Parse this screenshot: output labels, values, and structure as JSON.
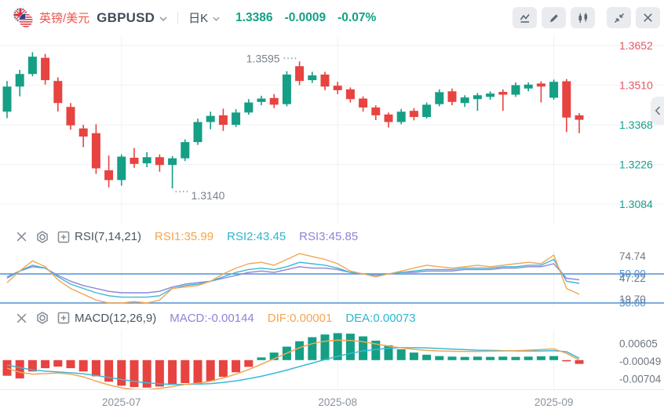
{
  "header": {
    "symbol_cn": "英镑/美元",
    "symbol_code": "GBPUSD",
    "period": "日K",
    "price": "1.3386",
    "change": "-0.0009",
    "change_pct": "-0.07%",
    "toolbar_icons": [
      "line-chart",
      "draw-pencil",
      "candlestick-type",
      "collapse",
      "close"
    ]
  },
  "rsi": {
    "title": "RSI(7,14,21)",
    "series_labels": [
      {
        "text": "RSI1:35.99",
        "color": "#f5a54f"
      },
      {
        "text": "RSI2:43.45",
        "color": "#2eb6d0"
      },
      {
        "text": "RSI3:45.85",
        "color": "#8f84d6"
      }
    ]
  },
  "macd": {
    "title": "MACD(12,26,9)",
    "series_labels": [
      {
        "text": "MACD:-0.00144",
        "color": "#8f84d6"
      },
      {
        "text": "DIF:0.00001",
        "color": "#f5a54f"
      },
      {
        "text": "DEA:0.00073",
        "color": "#2eb6d0"
      }
    ]
  },
  "colors": {
    "up": "#159f85",
    "down": "#e74340",
    "axis_above": "#e25764",
    "axis_below": "#16a08c",
    "level_line": "#5291d6",
    "grid": "#f0f1f5",
    "tick_text": "#6f7680",
    "annotation": "#7b828c",
    "orange": "#f2a657",
    "cyan": "#3cb8d8",
    "purple": "#8f84d6"
  },
  "chart_data": [
    {
      "type": "candlestick",
      "title": "GBPUSD 日K",
      "y_ticks": [
        {
          "label": "1.3652",
          "color": "#e25764"
        },
        {
          "label": "1.3510",
          "color": "#e25764"
        },
        {
          "label": "1.3368",
          "color": "#16a08c"
        },
        {
          "label": "1.3226",
          "color": "#16a08c"
        },
        {
          "label": "1.3084",
          "color": "#16a08c"
        }
      ],
      "x_ticks": [
        {
          "label": "2025-07",
          "index": 9
        },
        {
          "label": "2025-08",
          "index": 26
        },
        {
          "label": "2025-09",
          "index": 43
        }
      ],
      "ohlc_order": [
        "open",
        "high",
        "low",
        "close"
      ],
      "candles": [
        [
          1.3415,
          1.3525,
          1.3392,
          1.3505
        ],
        [
          1.3505,
          1.3565,
          1.347,
          1.355
        ],
        [
          1.355,
          1.3628,
          1.3542,
          1.3612
        ],
        [
          1.3608,
          1.3622,
          1.3512,
          1.3528
        ],
        [
          1.3525,
          1.3538,
          1.3416,
          1.3446
        ],
        [
          1.3432,
          1.3446,
          1.335,
          1.3366
        ],
        [
          1.3355,
          1.3368,
          1.3288,
          1.3326
        ],
        [
          1.3338,
          1.337,
          1.3192,
          1.3212
        ],
        [
          1.3205,
          1.3258,
          1.3144,
          1.317
        ],
        [
          1.317,
          1.3262,
          1.315,
          1.3254
        ],
        [
          1.325,
          1.3285,
          1.3214,
          1.3228
        ],
        [
          1.323,
          1.327,
          1.3216,
          1.3252
        ],
        [
          1.3252,
          1.3262,
          1.32,
          1.3224
        ],
        [
          1.3224,
          1.3256,
          1.314,
          1.3248
        ],
        [
          1.3248,
          1.3316,
          1.3238,
          1.3306
        ],
        [
          1.3306,
          1.339,
          1.3296,
          1.3378
        ],
        [
          1.3378,
          1.3415,
          1.3352,
          1.34
        ],
        [
          1.3402,
          1.3426,
          1.3346,
          1.3368
        ],
        [
          1.3368,
          1.3424,
          1.336,
          1.3412
        ],
        [
          1.3412,
          1.346,
          1.3404,
          1.3448
        ],
        [
          1.345,
          1.3472,
          1.3438,
          1.3462
        ],
        [
          1.3464,
          1.3478,
          1.3428,
          1.344
        ],
        [
          1.3442,
          1.356,
          1.3434,
          1.3548
        ],
        [
          1.3578,
          1.3595,
          1.351,
          1.3525
        ],
        [
          1.3528,
          1.3558,
          1.3518,
          1.3545
        ],
        [
          1.3548,
          1.3558,
          1.3492,
          1.3505
        ],
        [
          1.3508,
          1.3522,
          1.3478,
          1.3492
        ],
        [
          1.3495,
          1.3502,
          1.3448,
          1.346
        ],
        [
          1.3462,
          1.347,
          1.3415,
          1.343
        ],
        [
          1.343,
          1.3438,
          1.3385,
          1.3402
        ],
        [
          1.3405,
          1.3412,
          1.3358,
          1.3378
        ],
        [
          1.3378,
          1.3425,
          1.337,
          1.3415
        ],
        [
          1.3418,
          1.3428,
          1.3384,
          1.3396
        ],
        [
          1.3396,
          1.3448,
          1.339,
          1.344
        ],
        [
          1.3442,
          1.3495,
          1.3434,
          1.3485
        ],
        [
          1.3488,
          1.3498,
          1.3438,
          1.345
        ],
        [
          1.3446,
          1.3474,
          1.3432,
          1.3466
        ],
        [
          1.346,
          1.3482,
          1.3418,
          1.3474
        ],
        [
          1.3468,
          1.3488,
          1.3458,
          1.348
        ],
        [
          1.3486,
          1.3495,
          1.3418,
          1.3476
        ],
        [
          1.3476,
          1.352,
          1.3468,
          1.351
        ],
        [
          1.3498,
          1.352,
          1.3488,
          1.3512
        ],
        [
          1.3516,
          1.3524,
          1.3448,
          1.3505
        ],
        [
          1.3465,
          1.353,
          1.3458,
          1.3522
        ],
        [
          1.3524,
          1.3532,
          1.3342,
          1.3394
        ],
        [
          1.3402,
          1.341,
          1.3338,
          1.3386
        ]
      ],
      "annotations": [
        {
          "type": "high",
          "index": 23,
          "text": "1.3595"
        },
        {
          "type": "low",
          "index": 13,
          "text": "1.3140"
        }
      ]
    },
    {
      "type": "line",
      "name": "RSI",
      "levels": [
        {
          "value": 50,
          "label": "50.00"
        },
        {
          "value": 30,
          "label": "30.00"
        }
      ],
      "ticks": [
        "74.74",
        "47.22",
        "19.70"
      ],
      "series": [
        {
          "name": "RSI3",
          "color": "#8f84d6",
          "values": [
            48,
            52,
            55,
            54,
            49,
            45,
            42,
            40,
            38,
            37,
            37,
            37,
            38,
            41,
            43,
            44,
            45,
            47,
            49,
            51,
            52,
            51,
            53,
            55,
            54,
            54,
            53,
            51,
            50,
            50,
            50,
            51,
            51,
            52,
            52,
            52,
            53,
            53,
            53,
            54,
            54,
            55,
            55,
            57,
            47,
            46
          ]
        },
        {
          "name": "RSI2",
          "color": "#3cb8d8",
          "values": [
            47,
            52,
            56,
            54,
            48,
            43,
            40,
            37,
            35,
            34,
            34,
            34,
            35,
            40,
            42,
            43,
            45,
            48,
            51,
            53,
            54,
            53,
            55,
            58,
            57,
            56,
            54,
            51,
            50,
            49,
            50,
            51,
            52,
            53,
            53,
            53,
            54,
            54,
            54,
            55,
            55,
            56,
            56,
            60,
            45,
            43.5
          ]
        },
        {
          "name": "RSI1",
          "color": "#f2a657",
          "values": [
            44,
            52,
            59,
            55,
            46,
            40,
            36,
            32,
            30,
            30,
            31,
            30,
            32,
            40,
            41,
            42,
            45,
            50,
            54,
            57,
            58,
            56,
            60,
            64,
            62,
            60,
            57,
            52,
            50,
            48,
            50,
            52,
            54,
            56,
            55,
            54,
            55,
            56,
            55,
            56,
            57,
            58,
            57,
            63,
            40,
            36
          ]
        }
      ]
    },
    {
      "type": "macd",
      "name": "MACD",
      "y_ticks": [
        "0.00605",
        "-0.00049",
        "-0.00704"
      ],
      "histogram": [
        -0.0058,
        -0.0068,
        -0.0042,
        -0.003,
        -0.0024,
        -0.003,
        -0.0042,
        -0.006,
        -0.008,
        -0.0095,
        -0.01,
        -0.0102,
        -0.0098,
        -0.0092,
        -0.0085,
        -0.009,
        -0.0078,
        -0.0062,
        -0.0045,
        -0.0025,
        0.001,
        0.0028,
        0.005,
        0.007,
        0.0085,
        0.0095,
        0.01,
        0.0098,
        0.0088,
        0.0072,
        0.0055,
        0.004,
        0.0028,
        0.002,
        0.0015,
        0.0013,
        0.0012,
        0.0013,
        0.0012,
        0.0013,
        0.0012,
        0.0013,
        0.0014,
        0.0015,
        -0.0004,
        -0.0014
      ],
      "dif": [
        -0.003,
        -0.0045,
        -0.0052,
        -0.005,
        -0.0048,
        -0.0052,
        -0.0062,
        -0.0078,
        -0.0092,
        -0.0103,
        -0.0109,
        -0.011,
        -0.0105,
        -0.0098,
        -0.009,
        -0.0086,
        -0.0078,
        -0.0066,
        -0.0052,
        -0.0035,
        -0.0015,
        0.0005,
        0.0026,
        0.0046,
        0.0061,
        0.007,
        0.0074,
        0.0073,
        0.0068,
        0.006,
        0.0052,
        0.0045,
        0.004,
        0.0036,
        0.0034,
        0.0033,
        0.0032,
        0.0032,
        0.0033,
        0.0034,
        0.0035,
        0.0037,
        0.0039,
        0.0042,
        0.0025,
        0.0
      ],
      "dea": [
        -0.0018,
        -0.0028,
        -0.0036,
        -0.0041,
        -0.0044,
        -0.0047,
        -0.0051,
        -0.0057,
        -0.0064,
        -0.0072,
        -0.0079,
        -0.0084,
        -0.0088,
        -0.009,
        -0.009,
        -0.0089,
        -0.0087,
        -0.0083,
        -0.0077,
        -0.0069,
        -0.006,
        -0.0049,
        -0.0037,
        -0.0024,
        -0.0011,
        0.0002,
        0.0014,
        0.0025,
        0.0034,
        0.004,
        0.0044,
        0.0046,
        0.0046,
        0.0045,
        0.0043,
        0.0041,
        0.0039,
        0.0037,
        0.0036,
        0.0035,
        0.0034,
        0.0034,
        0.0034,
        0.0035,
        0.0031,
        0.0007
      ]
    }
  ]
}
